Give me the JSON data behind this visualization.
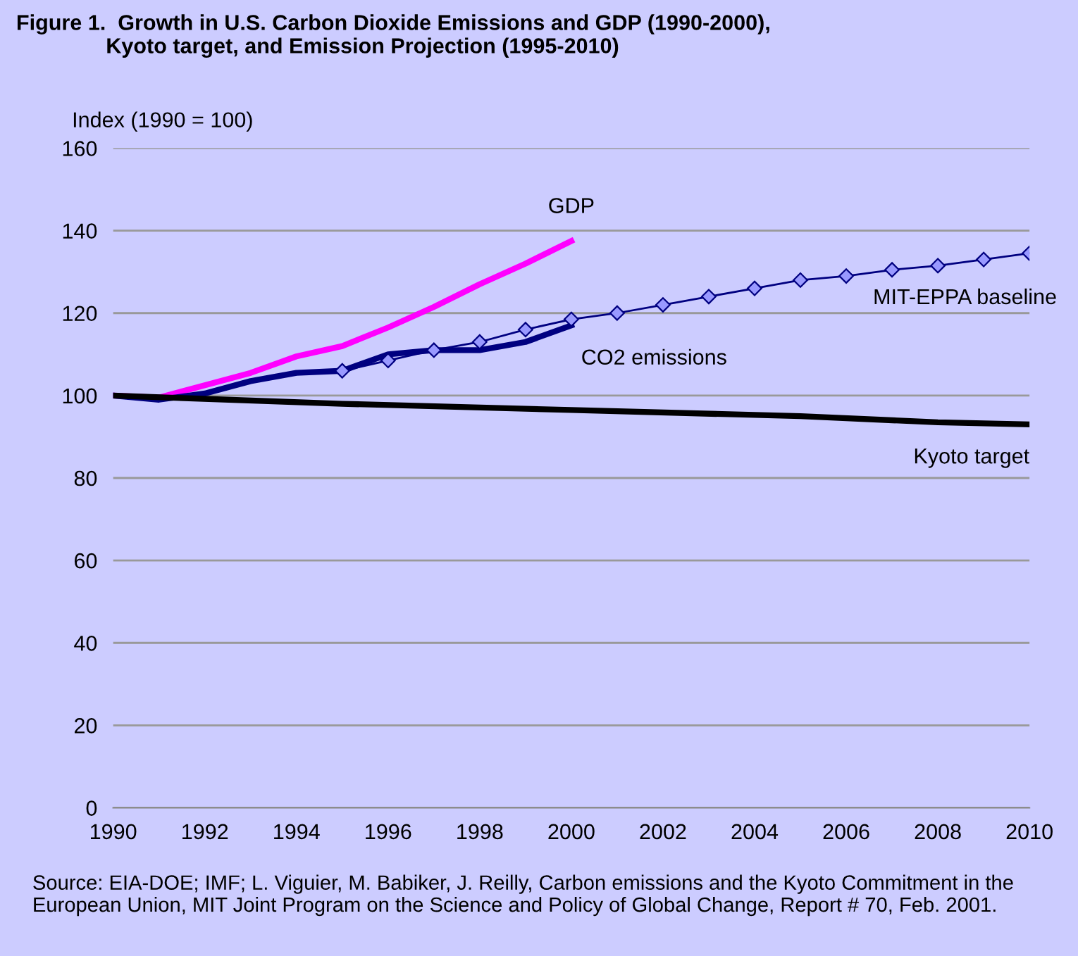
{
  "chart_data": {
    "type": "line",
    "title": "Figure 1.  Growth in U.S. Carbon Dioxide Emissions and GDP (1990-2000),\n               Kyoto target, and Emission Projection (1995-2010)",
    "ylabel": "Index (1990 = 100)",
    "series": [
      {
        "name": "GDP",
        "color": "#ff00ff",
        "x": [
          1990,
          1991,
          1992,
          1993,
          1994,
          1995,
          1996,
          1997,
          1998,
          1999,
          2000
        ],
        "values": [
          100,
          99.5,
          102.5,
          105.5,
          109.5,
          112,
          116.5,
          121.5,
          127,
          132,
          137.5
        ]
      },
      {
        "name": "MIT-EPPA baseline",
        "color": "#000080",
        "marker": "diamond",
        "x": [
          1995,
          1996,
          1997,
          1998,
          1999,
          2000,
          2001,
          2002,
          2003,
          2004,
          2005,
          2006,
          2007,
          2008,
          2009,
          2010
        ],
        "values": [
          106,
          108.5,
          111,
          113,
          116,
          118.5,
          120,
          122,
          124,
          126,
          128,
          129,
          130.5,
          131.5,
          133,
          134.5
        ]
      },
      {
        "name": "CO2 emissions",
        "color": "#000080",
        "x": [
          1990,
          1991,
          1992,
          1993,
          1994,
          1995,
          1996,
          1997,
          1998,
          1999,
          2000
        ],
        "values": [
          100,
          99,
          100.5,
          103.5,
          105.5,
          106,
          110,
          111,
          111,
          113,
          117
        ]
      },
      {
        "name": "Kyoto target",
        "color": "#000000",
        "x": [
          1990,
          1995,
          2000,
          2005,
          2008,
          2010
        ],
        "values": [
          100,
          98,
          96.5,
          95,
          93.5,
          93
        ]
      }
    ],
    "xlim": [
      1990,
      2010
    ],
    "xticks": [
      1990,
      1992,
      1994,
      1996,
      1998,
      2000,
      2002,
      2004,
      2006,
      2008,
      2010
    ],
    "ylim": [
      0,
      160
    ],
    "yticks": [
      0,
      20,
      40,
      60,
      80,
      100,
      120,
      140,
      160
    ],
    "grid": "y",
    "legend": false,
    "annotations": [
      "Source: EIA-DOE; IMF; L. Viguier, M. Babiker, J. Reilly, Carbon emissions and the Kyoto Commitment in the European Union, MIT Joint Program on the Science and Policy of Global Change, Report # 70, Feb. 2001."
    ]
  }
}
